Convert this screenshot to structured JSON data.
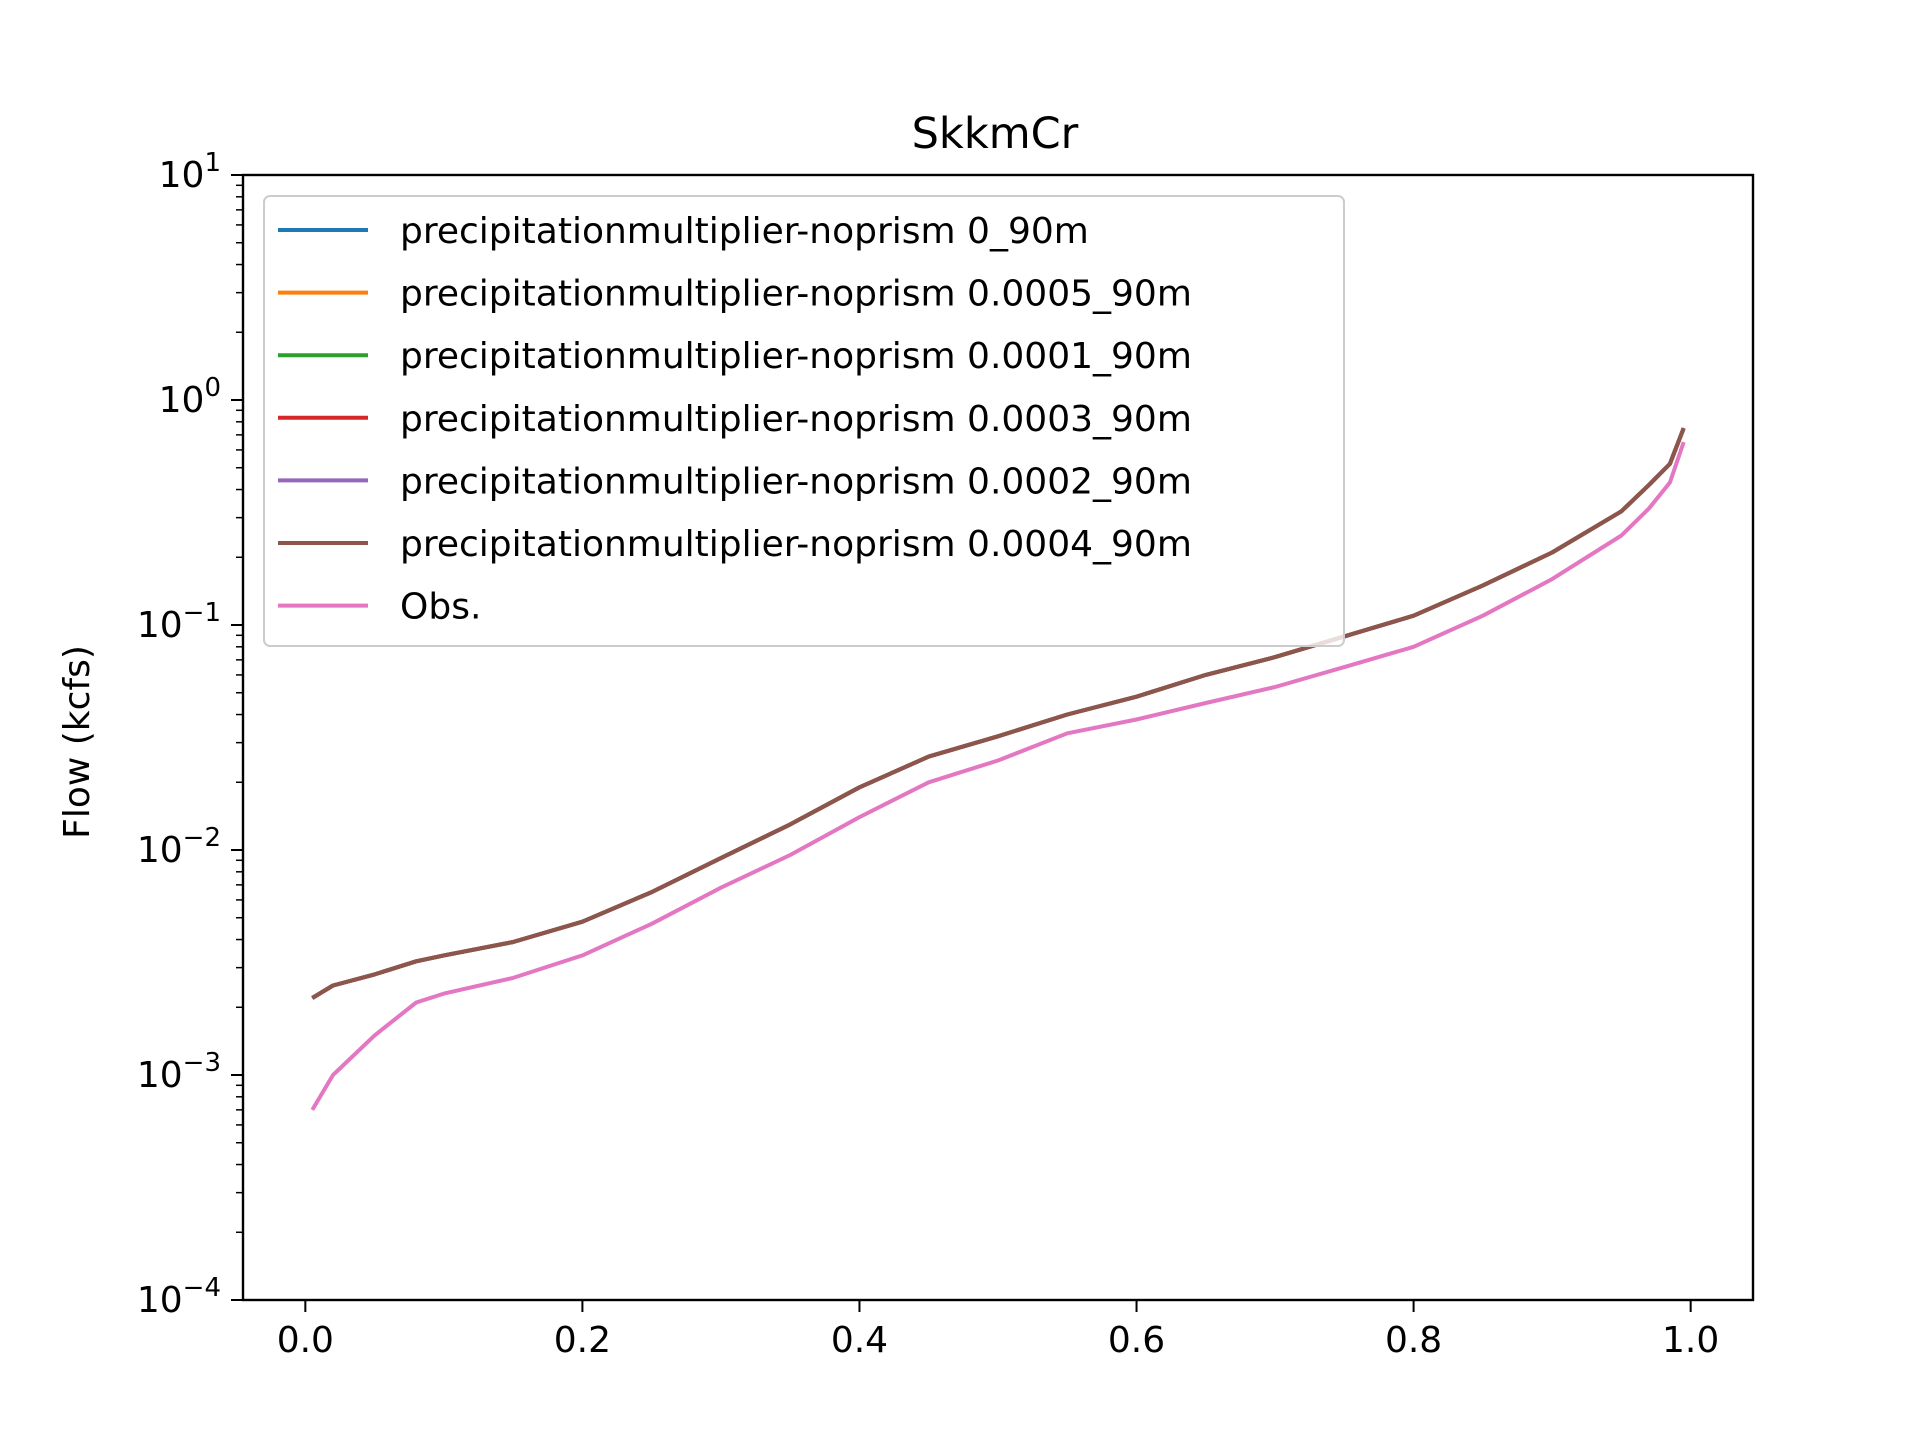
{
  "chart_data": {
    "type": "line",
    "title": "SkkmCr",
    "xlabel": "",
    "ylabel": "Flow (kcfs)",
    "xlim": [
      -0.045,
      1.045
    ],
    "ylim": [
      0.0001,
      10
    ],
    "yscale": "log",
    "grid": false,
    "legend_position": "upper-left",
    "x_ticks": [
      {
        "value": 0.0,
        "label": "0.0"
      },
      {
        "value": 0.2,
        "label": "0.2"
      },
      {
        "value": 0.4,
        "label": "0.4"
      },
      {
        "value": 0.6,
        "label": "0.6"
      },
      {
        "value": 0.8,
        "label": "0.8"
      },
      {
        "value": 1.0,
        "label": "1.0"
      }
    ],
    "y_ticks": [
      {
        "value": 10,
        "base": "10",
        "exp": "1"
      },
      {
        "value": 1,
        "base": "10",
        "exp": "0"
      },
      {
        "value": 0.1,
        "base": "10",
        "exp": "−1"
      },
      {
        "value": 0.01,
        "base": "10",
        "exp": "−2"
      },
      {
        "value": 0.001,
        "base": "10",
        "exp": "−3"
      },
      {
        "value": 0.0001,
        "base": "10",
        "exp": "−4"
      }
    ],
    "x": [
      0.005,
      0.02,
      0.05,
      0.08,
      0.1,
      0.15,
      0.2,
      0.25,
      0.3,
      0.35,
      0.4,
      0.45,
      0.5,
      0.55,
      0.6,
      0.65,
      0.7,
      0.75,
      0.8,
      0.85,
      0.9,
      0.95,
      0.97,
      0.985,
      0.995
    ],
    "series": [
      {
        "name": "precipitationmultiplier-noprism 0_90m",
        "color": "#1f77b4",
        "values": [
          0.0022,
          0.0025,
          0.0028,
          0.0032,
          0.0034,
          0.0039,
          0.0048,
          0.0065,
          0.0092,
          0.013,
          0.019,
          0.026,
          0.032,
          0.04,
          0.048,
          0.06,
          0.072,
          0.089,
          0.11,
          0.15,
          0.21,
          0.32,
          0.42,
          0.52,
          0.75
        ]
      },
      {
        "name": "precipitationmultiplier-noprism 0.0005_90m",
        "color": "#ff7f0e",
        "values": [
          0.0022,
          0.0025,
          0.0028,
          0.0032,
          0.0034,
          0.0039,
          0.0048,
          0.0065,
          0.0092,
          0.013,
          0.019,
          0.026,
          0.032,
          0.04,
          0.048,
          0.06,
          0.072,
          0.089,
          0.11,
          0.15,
          0.21,
          0.32,
          0.42,
          0.52,
          0.75
        ]
      },
      {
        "name": "precipitationmultiplier-noprism 0.0001_90m",
        "color": "#2ca02c",
        "values": [
          0.0022,
          0.0025,
          0.0028,
          0.0032,
          0.0034,
          0.0039,
          0.0048,
          0.0065,
          0.0092,
          0.013,
          0.019,
          0.026,
          0.032,
          0.04,
          0.048,
          0.06,
          0.072,
          0.089,
          0.11,
          0.15,
          0.21,
          0.32,
          0.42,
          0.52,
          0.75
        ]
      },
      {
        "name": "precipitationmultiplier-noprism 0.0003_90m",
        "color": "#d62728",
        "values": [
          0.0022,
          0.0025,
          0.0028,
          0.0032,
          0.0034,
          0.0039,
          0.0048,
          0.0065,
          0.0092,
          0.013,
          0.019,
          0.026,
          0.032,
          0.04,
          0.048,
          0.06,
          0.072,
          0.089,
          0.11,
          0.15,
          0.21,
          0.32,
          0.42,
          0.52,
          0.75
        ]
      },
      {
        "name": "precipitationmultiplier-noprism 0.0002_90m",
        "color": "#9467bd",
        "values": [
          0.0022,
          0.0025,
          0.0028,
          0.0032,
          0.0034,
          0.0039,
          0.0048,
          0.0065,
          0.0092,
          0.013,
          0.019,
          0.026,
          0.032,
          0.04,
          0.048,
          0.06,
          0.072,
          0.089,
          0.11,
          0.15,
          0.21,
          0.32,
          0.42,
          0.52,
          0.75
        ]
      },
      {
        "name": "precipitationmultiplier-noprism 0.0004_90m",
        "color": "#8c564b",
        "values": [
          0.0022,
          0.0025,
          0.0028,
          0.0032,
          0.0034,
          0.0039,
          0.0048,
          0.0065,
          0.0092,
          0.013,
          0.019,
          0.026,
          0.032,
          0.04,
          0.048,
          0.06,
          0.072,
          0.089,
          0.11,
          0.15,
          0.21,
          0.32,
          0.42,
          0.52,
          0.75
        ]
      },
      {
        "name": "Obs.",
        "color": "#e377c2",
        "values": [
          0.0007,
          0.001,
          0.0015,
          0.0021,
          0.0023,
          0.0027,
          0.0034,
          0.0047,
          0.0068,
          0.0095,
          0.014,
          0.02,
          0.025,
          0.033,
          0.038,
          0.045,
          0.053,
          0.065,
          0.08,
          0.11,
          0.16,
          0.25,
          0.33,
          0.43,
          0.65
        ]
      }
    ]
  }
}
